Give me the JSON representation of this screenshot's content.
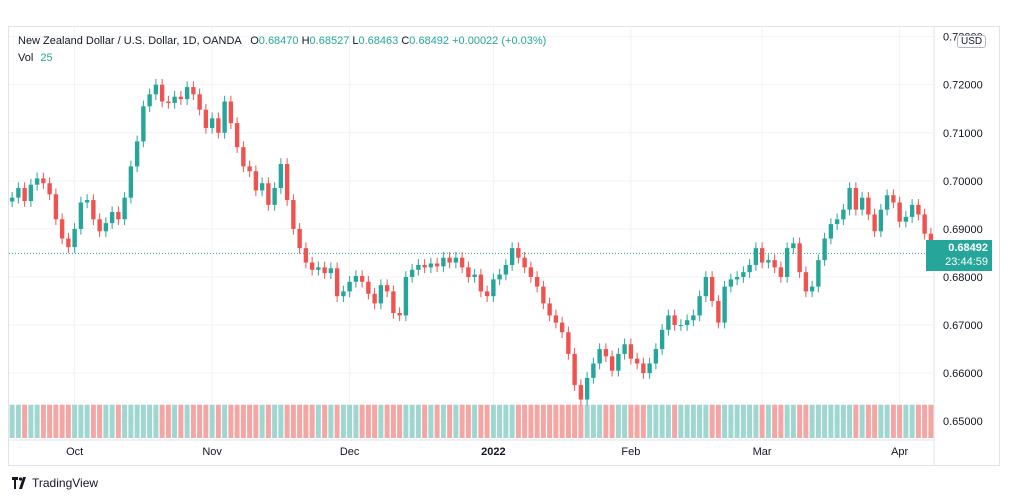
{
  "legend": {
    "symbol": "New Zealand Dollar / U.S. Dollar, 1D, OANDA",
    "o_label": "O",
    "o_value": "0.68470",
    "h_label": "H",
    "h_value": "0.68527",
    "l_label": "L",
    "l_value": "0.68463",
    "c_label": "C",
    "c_value": "0.68492",
    "change": "+0.00022 (+0.03%)",
    "vol_label": "Vol",
    "vol_value": "25"
  },
  "price_scale": {
    "currency": "USD"
  },
  "last_price": {
    "value": "0.68492",
    "countdown": "23:44:59"
  },
  "brand": {
    "name": "TradingView",
    "logo_icon": "tradingview-logo-icon"
  },
  "colors": {
    "up": "#26a69a",
    "down": "#ef5350",
    "up_volume": "#9fd6d0",
    "down_volume": "#f3a6a4"
  },
  "chart_data": {
    "type": "candlestick",
    "title": "New Zealand Dollar / U.S. Dollar, 1D, OANDA",
    "ylim": [
      0.6465,
      0.732
    ],
    "y_ticks": [
      "0.73000",
      "0.72000",
      "0.71000",
      "0.70000",
      "0.69000",
      "0.68000",
      "0.67000",
      "0.66000",
      "0.65000"
    ],
    "x_ticks": [
      "Oct",
      "Nov",
      "Dec",
      "2022",
      "Feb",
      "Mar",
      "Apr"
    ],
    "x_tick_index": [
      10,
      32,
      54,
      77,
      99,
      120,
      142
    ],
    "grid": true,
    "last_close": 0.68492,
    "close": [
      0.6965,
      0.6985,
      0.6958,
      0.6992,
      0.7005,
      0.6995,
      0.6972,
      0.692,
      0.688,
      0.6862,
      0.69,
      0.6955,
      0.696,
      0.692,
      0.6895,
      0.6912,
      0.6935,
      0.692,
      0.6965,
      0.703,
      0.7082,
      0.7155,
      0.718,
      0.72,
      0.7165,
      0.7162,
      0.7175,
      0.717,
      0.7195,
      0.718,
      0.7148,
      0.711,
      0.713,
      0.71,
      0.7165,
      0.712,
      0.707,
      0.703,
      0.702,
      0.698,
      0.6995,
      0.695,
      0.6985,
      0.7035,
      0.696,
      0.69,
      0.686,
      0.683,
      0.6815,
      0.682,
      0.6808,
      0.6818,
      0.676,
      0.677,
      0.679,
      0.6802,
      0.679,
      0.6765,
      0.6745,
      0.6783,
      0.677,
      0.6725,
      0.672,
      0.68,
      0.6815,
      0.6825,
      0.682,
      0.6828,
      0.6822,
      0.684,
      0.683,
      0.684,
      0.682,
      0.68,
      0.6805,
      0.677,
      0.676,
      0.6795,
      0.6805,
      0.6825,
      0.686,
      0.684,
      0.682,
      0.68,
      0.678,
      0.6745,
      0.672,
      0.6705,
      0.6685,
      0.664,
      0.6575,
      0.6545,
      0.659,
      0.662,
      0.665,
      0.6635,
      0.6605,
      0.664,
      0.666,
      0.663,
      0.662,
      0.66,
      0.662,
      0.665,
      0.669,
      0.672,
      0.67,
      0.67,
      0.671,
      0.672,
      0.676,
      0.68,
      0.675,
      0.6705,
      0.678,
      0.6795,
      0.68,
      0.681,
      0.6825,
      0.686,
      0.683,
      0.6835,
      0.682,
      0.68,
      0.686,
      0.687,
      0.681,
      0.677,
      0.678,
      0.6835,
      0.688,
      0.691,
      0.692,
      0.694,
      0.6985,
      0.694,
      0.6965,
      0.693,
      0.6895,
      0.694,
      0.697,
      0.6955,
      0.6915,
      0.6925,
      0.695,
      0.693,
      0.689,
      0.685
    ],
    "volume": [
      0.35,
      0.35,
      0.35,
      0.35,
      0.35,
      0.35,
      0.35,
      0.35,
      0.35,
      0.35,
      0.35,
      0.35,
      0.35,
      0.35,
      0.35,
      0.35,
      0.35,
      0.35,
      0.35,
      0.35,
      0.35,
      0.35,
      0.35,
      0.35,
      0.35,
      0.35,
      0.35,
      0.35,
      0.35,
      0.35,
      0.35,
      0.35,
      0.35,
      0.35,
      0.35,
      0.35,
      0.35,
      0.35,
      0.35,
      0.35,
      0.35,
      0.35,
      0.35,
      0.35,
      0.35,
      0.35,
      0.35,
      0.35,
      0.35,
      0.35,
      0.35,
      0.35,
      0.35,
      0.35,
      0.35,
      0.35,
      0.35,
      0.35,
      0.35,
      0.35,
      0.35,
      0.35,
      0.35,
      0.35,
      0.35,
      0.35,
      0.35,
      0.35,
      0.35,
      0.35,
      0.35,
      0.35,
      0.35,
      0.35,
      0.35,
      0.35,
      0.35,
      0.35,
      0.35,
      0.35,
      0.35,
      0.35,
      0.35,
      0.35,
      0.35,
      0.35,
      0.35,
      0.35,
      0.35,
      0.35,
      0.35,
      0.35,
      0.35,
      0.35,
      0.35,
      0.35,
      0.35,
      0.35,
      0.35,
      0.35,
      0.35,
      0.35,
      0.35,
      0.35,
      0.35,
      0.35,
      0.35,
      0.35,
      0.35,
      0.35,
      0.35,
      0.35,
      0.35,
      0.35,
      0.35,
      0.35,
      0.35,
      0.35,
      0.35,
      0.35,
      0.35,
      0.35,
      0.35,
      0.35,
      0.35,
      0.35,
      0.35,
      0.35,
      0.35,
      0.35,
      0.35,
      0.35,
      0.35,
      0.35,
      0.35,
      0.35,
      0.35,
      0.35,
      0.35,
      0.35,
      0.35,
      0.35,
      0.35,
      0.35,
      0.35,
      0.35,
      0.35,
      0.35
    ]
  }
}
